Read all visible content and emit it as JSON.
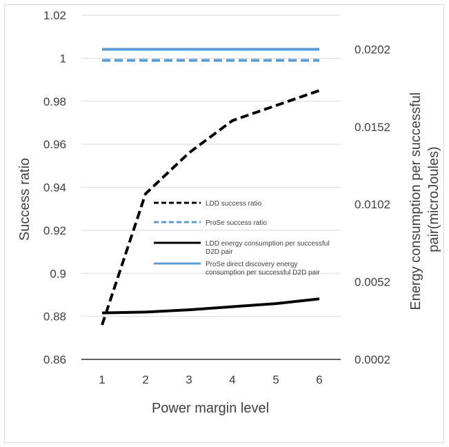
{
  "chart_data": {
    "type": "line",
    "title": "",
    "xlabel": "Power margin level",
    "ylabel": "Success ratio",
    "y2label_lines": [
      "Energy consumption per successful",
      "pair(microJoules)"
    ],
    "categories": [
      "1",
      "2",
      "3",
      "4",
      "5",
      "6"
    ],
    "ylim": [
      0.86,
      1.02
    ],
    "y_ticks": [
      0.86,
      0.88,
      0.9,
      0.92,
      0.94,
      0.96,
      0.98,
      1,
      1.02
    ],
    "y_tick_labels": [
      "0.86",
      "0.88",
      "0.9",
      "0.92",
      "0.94",
      "0.96",
      "0.98",
      "1",
      "1.02"
    ],
    "y2lim": [
      0.0002,
      0.0224
    ],
    "y2_ticks": [
      0.0002,
      0.0052,
      0.0102,
      0.0152,
      0.0202
    ],
    "y2_tick_labels": [
      "0.0002",
      "0.0052",
      "0.0102",
      "0.0152",
      "0.0202"
    ],
    "grid": true,
    "legend_position": "center-right",
    "series": [
      {
        "name": "LDD success ratio",
        "axis": "left",
        "color": "#000000",
        "dash": true,
        "values": [
          0.876,
          0.937,
          0.956,
          0.971,
          0.978,
          0.985
        ]
      },
      {
        "name": "ProSe success ratio",
        "axis": "left",
        "color": "#5b9bd5",
        "dash": true,
        "values": [
          0.999,
          0.999,
          0.999,
          0.999,
          0.999,
          0.999
        ]
      },
      {
        "name": "LDD  energy consumption per successful D2D pair",
        "axis": "right",
        "color": "#000000",
        "dash": false,
        "values": [
          0.0032,
          0.00325,
          0.0034,
          0.0036,
          0.0038,
          0.0041
        ]
      },
      {
        "name": "ProSe direct discovery energy consumption per successful D2D pair",
        "axis": "right",
        "color": "#5b9bd5",
        "dash": false,
        "values": [
          0.0202,
          0.0202,
          0.0202,
          0.0202,
          0.0202,
          0.0202
        ]
      }
    ],
    "legend_lines": [
      [
        "LDD success ratio"
      ],
      [
        "ProSe success ratio"
      ],
      [
        "LDD  energy consumption per successful",
        "D2D pair"
      ],
      [
        "ProSe direct discovery energy",
        "consumption per successful D2D pair"
      ]
    ]
  }
}
